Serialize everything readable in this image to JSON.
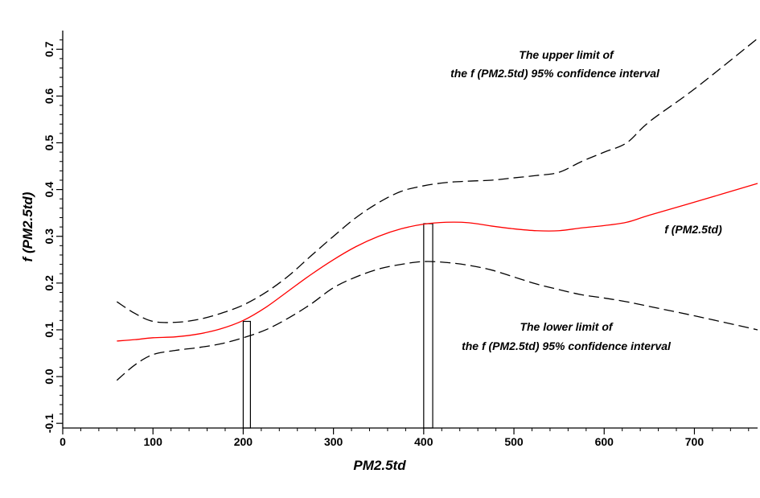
{
  "chart_data": {
    "type": "line",
    "xlabel": "PM2.5td",
    "ylabel": "f (PM2.5td)",
    "xlim": [
      0,
      770
    ],
    "ylim": [
      -0.11,
      0.74
    ],
    "x_ticks": [
      0,
      100,
      200,
      300,
      400,
      500,
      600,
      700
    ],
    "y_ticks": [
      -0.1,
      0.0,
      0.1,
      0.2,
      0.3,
      0.4,
      0.5,
      0.6,
      0.7
    ],
    "x_tick_labels": [
      "0",
      "100",
      "200",
      "300",
      "400",
      "500",
      "600",
      "700"
    ],
    "y_tick_labels": [
      "-0.1",
      "0.0",
      "0.1",
      "0.2",
      "0.3",
      "0.4",
      "0.5",
      "0.6",
      "0.7"
    ],
    "grid": false,
    "series": [
      {
        "name": "f (PM2.5td)",
        "color": "#ff0000",
        "style": "solid",
        "x": [
          60,
          80,
          100,
          125,
          150,
          175,
          200,
          225,
          250,
          275,
          300,
          325,
          350,
          375,
          400,
          425,
          450,
          475,
          500,
          525,
          550,
          575,
          600,
          625,
          650,
          700,
          770
        ],
        "y": [
          0.076,
          0.079,
          0.083,
          0.085,
          0.091,
          0.102,
          0.12,
          0.148,
          0.183,
          0.218,
          0.25,
          0.278,
          0.3,
          0.316,
          0.326,
          0.33,
          0.329,
          0.322,
          0.316,
          0.312,
          0.312,
          0.318,
          0.323,
          0.33,
          0.345,
          0.373,
          0.413
        ]
      },
      {
        "name": "The upper limit of the f (PM2.5td) 95% confidence interval",
        "color": "#000000",
        "style": "dashed",
        "x": [
          60,
          80,
          100,
          125,
          150,
          175,
          200,
          225,
          250,
          275,
          300,
          325,
          350,
          375,
          400,
          425,
          450,
          475,
          500,
          525,
          550,
          575,
          600,
          625,
          650,
          700,
          770
        ],
        "y": [
          0.16,
          0.135,
          0.118,
          0.116,
          0.122,
          0.135,
          0.153,
          0.18,
          0.215,
          0.258,
          0.3,
          0.34,
          0.372,
          0.396,
          0.408,
          0.415,
          0.418,
          0.42,
          0.425,
          0.43,
          0.437,
          0.46,
          0.48,
          0.5,
          0.545,
          0.615,
          0.723
        ]
      },
      {
        "name": "The lower limit of the f (PM2.5td) 95% confidence interval",
        "color": "#000000",
        "style": "dashed",
        "x": [
          60,
          80,
          100,
          125,
          150,
          175,
          200,
          225,
          250,
          275,
          300,
          325,
          350,
          375,
          400,
          425,
          450,
          475,
          500,
          525,
          550,
          575,
          600,
          625,
          650,
          700,
          770
        ],
        "y": [
          -0.008,
          0.025,
          0.047,
          0.056,
          0.062,
          0.07,
          0.083,
          0.1,
          0.125,
          0.155,
          0.19,
          0.213,
          0.23,
          0.24,
          0.246,
          0.244,
          0.238,
          0.228,
          0.213,
          0.198,
          0.186,
          0.175,
          0.168,
          0.16,
          0.15,
          0.13,
          0.1
        ]
      }
    ],
    "bars": [
      {
        "x_from": 200,
        "x_to": 208,
        "top": 0.118
      },
      {
        "x_from": 400,
        "x_to": 410,
        "top": 0.327
      }
    ],
    "annotations": {
      "upper_line1": "The upper limit of",
      "upper_line2": "the f (PM2.5td) 95% confidence interval",
      "f_label": "f (PM2.5td)",
      "lower_line1": "The lower limit of",
      "lower_line2": "the f (PM2.5td) 95% confidence interval"
    }
  }
}
